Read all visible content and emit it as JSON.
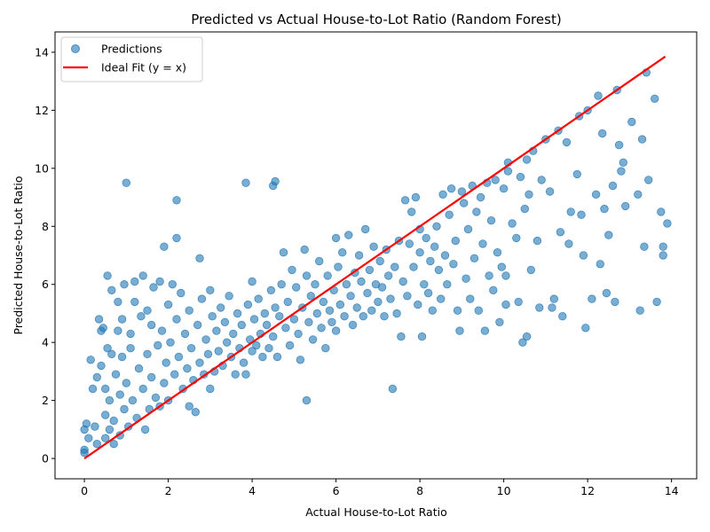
{
  "chart_data": {
    "type": "scatter",
    "title": "Predicted vs Actual House-to-Lot Ratio (Random Forest)",
    "xlabel": "Actual House-to-Lot Ratio",
    "ylabel": "Predicted House-to-Lot Ratio",
    "xlim": [
      -0.7,
      14.6
    ],
    "ylim": [
      -0.7,
      14.7
    ],
    "xticks": [
      0,
      2,
      4,
      6,
      8,
      10,
      12,
      14
    ],
    "yticks": [
      0,
      2,
      4,
      6,
      8,
      10,
      12,
      14
    ],
    "grid": false,
    "legend_position": "top-left",
    "colors": {
      "points": "#1f77b4",
      "ideal_line": "#ff0000"
    },
    "series": [
      {
        "name": "Predictions",
        "kind": "scatter",
        "points": [
          [
            0.0,
            0.2
          ],
          [
            0.0,
            0.3
          ],
          [
            0.0,
            1.0
          ],
          [
            0.05,
            1.2
          ],
          [
            0.1,
            0.7
          ],
          [
            0.15,
            3.4
          ],
          [
            0.2,
            2.4
          ],
          [
            0.25,
            1.1
          ],
          [
            0.3,
            0.5
          ],
          [
            0.3,
            2.8
          ],
          [
            0.35,
            4.8
          ],
          [
            0.4,
            3.2
          ],
          [
            0.4,
            4.4
          ],
          [
            0.45,
            4.5
          ],
          [
            0.5,
            0.7
          ],
          [
            0.5,
            1.5
          ],
          [
            0.5,
            2.4
          ],
          [
            0.55,
            3.8
          ],
          [
            0.55,
            6.3
          ],
          [
            0.6,
            1.0
          ],
          [
            0.6,
            2.0
          ],
          [
            0.65,
            3.6
          ],
          [
            0.65,
            5.8
          ],
          [
            0.7,
            0.5
          ],
          [
            0.7,
            1.3
          ],
          [
            0.75,
            2.9
          ],
          [
            0.8,
            4.4
          ],
          [
            0.8,
            5.4
          ],
          [
            0.85,
            0.8
          ],
          [
            0.85,
            2.2
          ],
          [
            0.9,
            3.5
          ],
          [
            0.9,
            4.8
          ],
          [
            0.95,
            1.7
          ],
          [
            0.95,
            6.0
          ],
          [
            1.0,
            2.6
          ],
          [
            1.0,
            9.5
          ],
          [
            1.05,
            1.1
          ],
          [
            1.1,
            3.8
          ],
          [
            1.1,
            4.3
          ],
          [
            1.15,
            2.0
          ],
          [
            1.2,
            5.4
          ],
          [
            1.2,
            6.1
          ],
          [
            1.25,
            1.4
          ],
          [
            1.3,
            3.1
          ],
          [
            1.35,
            4.9
          ],
          [
            1.4,
            2.4
          ],
          [
            1.4,
            6.3
          ],
          [
            1.45,
            1.0
          ],
          [
            1.5,
            3.6
          ],
          [
            1.5,
            5.1
          ],
          [
            1.55,
            1.7
          ],
          [
            1.6,
            2.8
          ],
          [
            1.6,
            4.6
          ],
          [
            1.65,
            5.9
          ],
          [
            1.7,
            2.1
          ],
          [
            1.75,
            3.9
          ],
          [
            1.8,
            1.8
          ],
          [
            1.8,
            6.1
          ],
          [
            1.85,
            4.4
          ],
          [
            1.9,
            2.6
          ],
          [
            1.9,
            7.3
          ],
          [
            1.95,
            3.3
          ],
          [
            2.0,
            5.3
          ],
          [
            2.0,
            2.0
          ],
          [
            2.05,
            4.0
          ],
          [
            2.1,
            6.0
          ],
          [
            2.15,
            2.9
          ],
          [
            2.2,
            4.8
          ],
          [
            2.2,
            8.9
          ],
          [
            2.2,
            7.6
          ],
          [
            2.25,
            3.5
          ],
          [
            2.3,
            5.7
          ],
          [
            2.35,
            2.4
          ],
          [
            2.4,
            4.3
          ],
          [
            2.45,
            3.1
          ],
          [
            2.5,
            1.8
          ],
          [
            2.5,
            5.1
          ],
          [
            2.55,
            3.8
          ],
          [
            2.6,
            2.7
          ],
          [
            2.65,
            1.6
          ],
          [
            2.7,
            4.6
          ],
          [
            2.75,
            3.3
          ],
          [
            2.75,
            6.9
          ],
          [
            2.8,
            5.5
          ],
          [
            2.85,
            2.9
          ],
          [
            2.9,
            4.1
          ],
          [
            2.95,
            3.6
          ],
          [
            3.0,
            2.4
          ],
          [
            3.0,
            5.8
          ],
          [
            3.05,
            4.9
          ],
          [
            3.1,
            3.0
          ],
          [
            3.15,
            4.4
          ],
          [
            3.2,
            3.7
          ],
          [
            3.25,
            5.2
          ],
          [
            3.3,
            3.2
          ],
          [
            3.35,
            4.7
          ],
          [
            3.4,
            4.0
          ],
          [
            3.45,
            5.6
          ],
          [
            3.5,
            3.5
          ],
          [
            3.55,
            4.3
          ],
          [
            3.6,
            2.9
          ],
          [
            3.65,
            5.0
          ],
          [
            3.7,
            3.8
          ],
          [
            3.75,
            4.6
          ],
          [
            3.8,
            3.3
          ],
          [
            3.85,
            2.9
          ],
          [
            3.85,
            9.5
          ],
          [
            3.9,
            5.3
          ],
          [
            3.95,
            4.1
          ],
          [
            4.0,
            3.7
          ],
          [
            4.0,
            6.1
          ],
          [
            4.05,
            4.8
          ],
          [
            4.1,
            3.9
          ],
          [
            4.15,
            5.5
          ],
          [
            4.2,
            4.3
          ],
          [
            4.25,
            3.5
          ],
          [
            4.3,
            5.0
          ],
          [
            4.35,
            4.6
          ],
          [
            4.4,
            3.8
          ],
          [
            4.45,
            5.8
          ],
          [
            4.5,
            9.4
          ],
          [
            4.55,
            9.55
          ],
          [
            4.5,
            4.2
          ],
          [
            4.55,
            5.2
          ],
          [
            4.6,
            3.5
          ],
          [
            4.65,
            4.9
          ],
          [
            4.7,
            6.0
          ],
          [
            4.75,
            7.1
          ],
          [
            4.8,
            4.5
          ],
          [
            4.85,
            5.4
          ],
          [
            4.9,
            3.9
          ],
          [
            4.95,
            6.5
          ],
          [
            5.0,
            4.8
          ],
          [
            5.05,
            5.9
          ],
          [
            5.1,
            4.3
          ],
          [
            5.15,
            3.4
          ],
          [
            5.2,
            5.2
          ],
          [
            5.25,
            7.2
          ],
          [
            5.3,
            2.0
          ],
          [
            5.3,
            6.3
          ],
          [
            5.35,
            4.7
          ],
          [
            5.4,
            5.6
          ],
          [
            5.45,
            4.1
          ],
          [
            5.5,
            6.0
          ],
          [
            5.55,
            5.0
          ],
          [
            5.6,
            6.8
          ],
          [
            5.65,
            4.5
          ],
          [
            5.7,
            5.4
          ],
          [
            5.75,
            3.8
          ],
          [
            5.8,
            6.3
          ],
          [
            5.85,
            5.1
          ],
          [
            5.9,
            4.7
          ],
          [
            5.95,
            5.8
          ],
          [
            6.0,
            7.6
          ],
          [
            6.0,
            4.4
          ],
          [
            6.05,
            6.6
          ],
          [
            6.1,
            5.3
          ],
          [
            6.15,
            7.1
          ],
          [
            6.2,
            4.9
          ],
          [
            6.25,
            6.0
          ],
          [
            6.3,
            7.7
          ],
          [
            6.35,
            5.6
          ],
          [
            6.4,
            4.6
          ],
          [
            6.45,
            6.4
          ],
          [
            6.5,
            5.2
          ],
          [
            6.55,
            7.0
          ],
          [
            6.6,
            6.1
          ],
          [
            6.65,
            4.9
          ],
          [
            6.7,
            7.9
          ],
          [
            6.75,
            5.7
          ],
          [
            6.8,
            6.5
          ],
          [
            6.85,
            5.1
          ],
          [
            6.9,
            7.3
          ],
          [
            6.95,
            6.0
          ],
          [
            7.0,
            5.4
          ],
          [
            7.05,
            6.8
          ],
          [
            7.1,
            5.9
          ],
          [
            7.15,
            4.9
          ],
          [
            7.2,
            7.2
          ],
          [
            7.25,
            6.3
          ],
          [
            7.3,
            5.5
          ],
          [
            7.35,
            2.4
          ],
          [
            7.4,
            6.6
          ],
          [
            7.45,
            5.0
          ],
          [
            7.5,
            7.5
          ],
          [
            7.55,
            4.2
          ],
          [
            7.6,
            6.1
          ],
          [
            7.65,
            8.9
          ],
          [
            7.7,
            5.6
          ],
          [
            7.75,
            7.4
          ],
          [
            7.8,
            8.5
          ],
          [
            7.85,
            6.6
          ],
          [
            7.9,
            9.0
          ],
          [
            7.95,
            5.3
          ],
          [
            8.0,
            7.1
          ],
          [
            8.0,
            7.9
          ],
          [
            8.05,
            4.2
          ],
          [
            8.1,
            6.0
          ],
          [
            8.15,
            7.6
          ],
          [
            8.2,
            5.7
          ],
          [
            8.25,
            6.8
          ],
          [
            8.3,
            5.1
          ],
          [
            8.35,
            7.3
          ],
          [
            8.4,
            8.0
          ],
          [
            8.45,
            6.5
          ],
          [
            8.5,
            5.5
          ],
          [
            8.55,
            9.1
          ],
          [
            8.6,
            7.0
          ],
          [
            8.65,
            6.0
          ],
          [
            8.7,
            8.4
          ],
          [
            8.75,
            9.3
          ],
          [
            8.8,
            6.7
          ],
          [
            8.85,
            7.5
          ],
          [
            8.9,
            5.1
          ],
          [
            8.95,
            4.4
          ],
          [
            9.0,
            9.2
          ],
          [
            9.05,
            8.8
          ],
          [
            9.1,
            6.2
          ],
          [
            9.15,
            7.9
          ],
          [
            9.2,
            5.5
          ],
          [
            9.25,
            9.4
          ],
          [
            9.3,
            6.9
          ],
          [
            9.35,
            8.5
          ],
          [
            9.4,
            5.1
          ],
          [
            9.45,
            9.0
          ],
          [
            9.5,
            7.4
          ],
          [
            9.55,
            4.4
          ],
          [
            9.6,
            9.5
          ],
          [
            9.65,
            6.3
          ],
          [
            9.7,
            8.2
          ],
          [
            9.75,
            5.8
          ],
          [
            9.8,
            9.6
          ],
          [
            9.85,
            7.1
          ],
          [
            9.9,
            4.7
          ],
          [
            9.95,
            6.6
          ],
          [
            10.0,
            9.3
          ],
          [
            10.05,
            6.3
          ],
          [
            10.05,
            5.3
          ],
          [
            10.1,
            10.2
          ],
          [
            10.1,
            9.9
          ],
          [
            10.2,
            8.1
          ],
          [
            10.3,
            7.6
          ],
          [
            10.35,
            5.4
          ],
          [
            10.4,
            9.7
          ],
          [
            10.45,
            4.0
          ],
          [
            10.5,
            8.6
          ],
          [
            10.55,
            4.2
          ],
          [
            10.55,
            10.3
          ],
          [
            10.6,
            9.1
          ],
          [
            10.65,
            6.5
          ],
          [
            10.7,
            10.6
          ],
          [
            10.8,
            7.5
          ],
          [
            10.85,
            5.2
          ],
          [
            10.9,
            9.6
          ],
          [
            11.0,
            11.0
          ],
          [
            11.1,
            9.2
          ],
          [
            11.15,
            5.2
          ],
          [
            11.2,
            5.5
          ],
          [
            11.3,
            11.3
          ],
          [
            11.35,
            7.8
          ],
          [
            11.4,
            4.9
          ],
          [
            11.5,
            10.9
          ],
          [
            11.55,
            7.4
          ],
          [
            11.6,
            8.5
          ],
          [
            11.75,
            9.8
          ],
          [
            11.8,
            11.8
          ],
          [
            11.85,
            8.4
          ],
          [
            11.9,
            7.0
          ],
          [
            11.95,
            4.5
          ],
          [
            12.0,
            12.0
          ],
          [
            12.1,
            5.5
          ],
          [
            12.2,
            9.1
          ],
          [
            12.25,
            12.5
          ],
          [
            12.3,
            6.7
          ],
          [
            12.35,
            11.2
          ],
          [
            12.4,
            8.6
          ],
          [
            12.45,
            5.7
          ],
          [
            12.5,
            7.7
          ],
          [
            12.6,
            9.4
          ],
          [
            12.65,
            5.4
          ],
          [
            12.7,
            12.7
          ],
          [
            12.75,
            10.8
          ],
          [
            12.8,
            9.9
          ],
          [
            12.85,
            10.2
          ],
          [
            12.9,
            8.7
          ],
          [
            13.05,
            11.6
          ],
          [
            13.2,
            9.1
          ],
          [
            13.25,
            5.1
          ],
          [
            13.3,
            11.0
          ],
          [
            13.35,
            7.3
          ],
          [
            13.4,
            13.3
          ],
          [
            13.45,
            9.6
          ],
          [
            13.6,
            12.4
          ],
          [
            13.65,
            5.4
          ],
          [
            13.75,
            8.5
          ],
          [
            13.8,
            7.0
          ],
          [
            13.8,
            7.3
          ],
          [
            13.9,
            8.1
          ]
        ]
      },
      {
        "name": "Ideal Fit (y = x)",
        "kind": "line",
        "x": [
          0,
          13.85
        ],
        "y": [
          0,
          13.85
        ]
      }
    ]
  }
}
